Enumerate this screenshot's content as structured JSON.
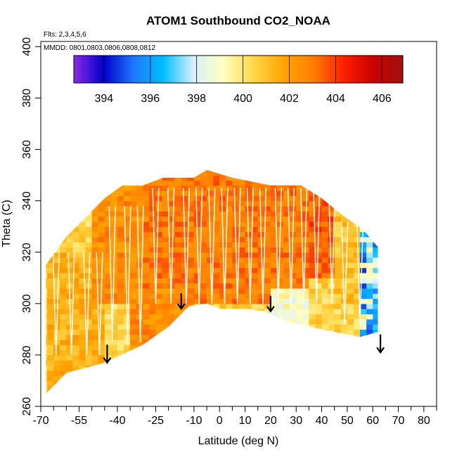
{
  "chart_data": {
    "type": "heatmap",
    "title": "ATOM1 Southbound CO2_NOAA",
    "flights_label": "Flts: 2,3,4,5,6",
    "mmdd_label": "MMDD: 0801,0803,0806,0808,0812",
    "xlabel": "Latitude (deg N)",
    "ylabel": "Theta (C)",
    "xlim": [
      -70,
      85
    ],
    "ylim": [
      260,
      402
    ],
    "x_ticks": [
      -70,
      -55,
      -40,
      -25,
      -10,
      0,
      10,
      20,
      30,
      40,
      50,
      60,
      70,
      80
    ],
    "y_ticks": [
      260,
      280,
      300,
      320,
      340,
      360,
      380,
      400
    ],
    "colorbar": {
      "range": [
        392.7,
        406.9
      ],
      "ticks": [
        394,
        396,
        398,
        400,
        402,
        404,
        406
      ],
      "colors": [
        "#8a2be2",
        "#0000cc",
        "#1f77ff",
        "#00bfff",
        "#d8f0ff",
        "#ffffc0",
        "#ffd84a",
        "#ffa500",
        "#ff7f00",
        "#ff2000",
        "#cc0000",
        "#a01010"
      ],
      "bands": [
        394,
        396,
        398,
        400,
        402,
        404,
        406
      ]
    },
    "field": {
      "description": "CO2 mixing ratio (ppm) over latitude/theta curtain",
      "lat_range": [
        -68,
        62
      ],
      "theta_top": [
        {
          "lat": -68,
          "theta": 315
        },
        {
          "lat": -60,
          "theta": 326
        },
        {
          "lat": -52,
          "theta": 334
        },
        {
          "lat": -45,
          "theta": 341
        },
        {
          "lat": -38,
          "theta": 346
        },
        {
          "lat": -30,
          "theta": 346
        },
        {
          "lat": -22,
          "theta": 349
        },
        {
          "lat": -10,
          "theta": 349
        },
        {
          "lat": -5,
          "theta": 352
        },
        {
          "lat": 5,
          "theta": 349
        },
        {
          "lat": 20,
          "theta": 346
        },
        {
          "lat": 32,
          "theta": 346
        },
        {
          "lat": 40,
          "theta": 341
        },
        {
          "lat": 50,
          "theta": 333
        },
        {
          "lat": 56,
          "theta": 329
        },
        {
          "lat": 62,
          "theta": 322
        }
      ],
      "theta_bottom": [
        {
          "lat": -68,
          "theta": 265
        },
        {
          "lat": -60,
          "theta": 273
        },
        {
          "lat": -45,
          "theta": 277
        },
        {
          "lat": -30,
          "theta": 284
        },
        {
          "lat": -20,
          "theta": 291
        },
        {
          "lat": -12,
          "theta": 299
        },
        {
          "lat": -5,
          "theta": 300
        },
        {
          "lat": 0,
          "theta": 298
        },
        {
          "lat": 10,
          "theta": 298
        },
        {
          "lat": 18,
          "theta": 297
        },
        {
          "lat": 26,
          "theta": 293
        },
        {
          "lat": 40,
          "theta": 290
        },
        {
          "lat": 55,
          "theta": 287
        },
        {
          "lat": 62,
          "theta": 289
        }
      ],
      "regions": [
        {
          "lat": [
            -68,
            -45
          ],
          "theta": [
            260,
            320
          ],
          "value": 401.5
        },
        {
          "lat": [
            -50,
            -30
          ],
          "theta": [
            300,
            345
          ],
          "value": 402.5
        },
        {
          "lat": [
            -30,
            35
          ],
          "theta": [
            300,
            352
          ],
          "value": 403.0
        },
        {
          "lat": [
            -35,
            -10
          ],
          "theta": [
            280,
            305
          ],
          "value": 402.5
        },
        {
          "lat": [
            35,
            45
          ],
          "theta": [
            310,
            345
          ],
          "value": 403.5
        },
        {
          "lat": [
            45,
            55
          ],
          "theta": [
            300,
            335
          ],
          "value": 401.0
        },
        {
          "lat": [
            55,
            62
          ],
          "theta": [
            290,
            330
          ],
          "value": 397.0
        },
        {
          "lat": [
            20,
            35
          ],
          "theta": [
            290,
            305
          ],
          "value": 399.0
        }
      ]
    },
    "annotations": [
      {
        "type": "arrow",
        "lat": -44,
        "theta_top": 284,
        "theta_bottom": 277
      },
      {
        "type": "arrow",
        "lat": -15,
        "theta_top": 304,
        "theta_bottom": 298
      },
      {
        "type": "arrow",
        "lat": 20,
        "theta_top": 303,
        "theta_bottom": 297
      },
      {
        "type": "arrow",
        "lat": 63,
        "theta_top": 288,
        "theta_bottom": 281
      }
    ]
  }
}
